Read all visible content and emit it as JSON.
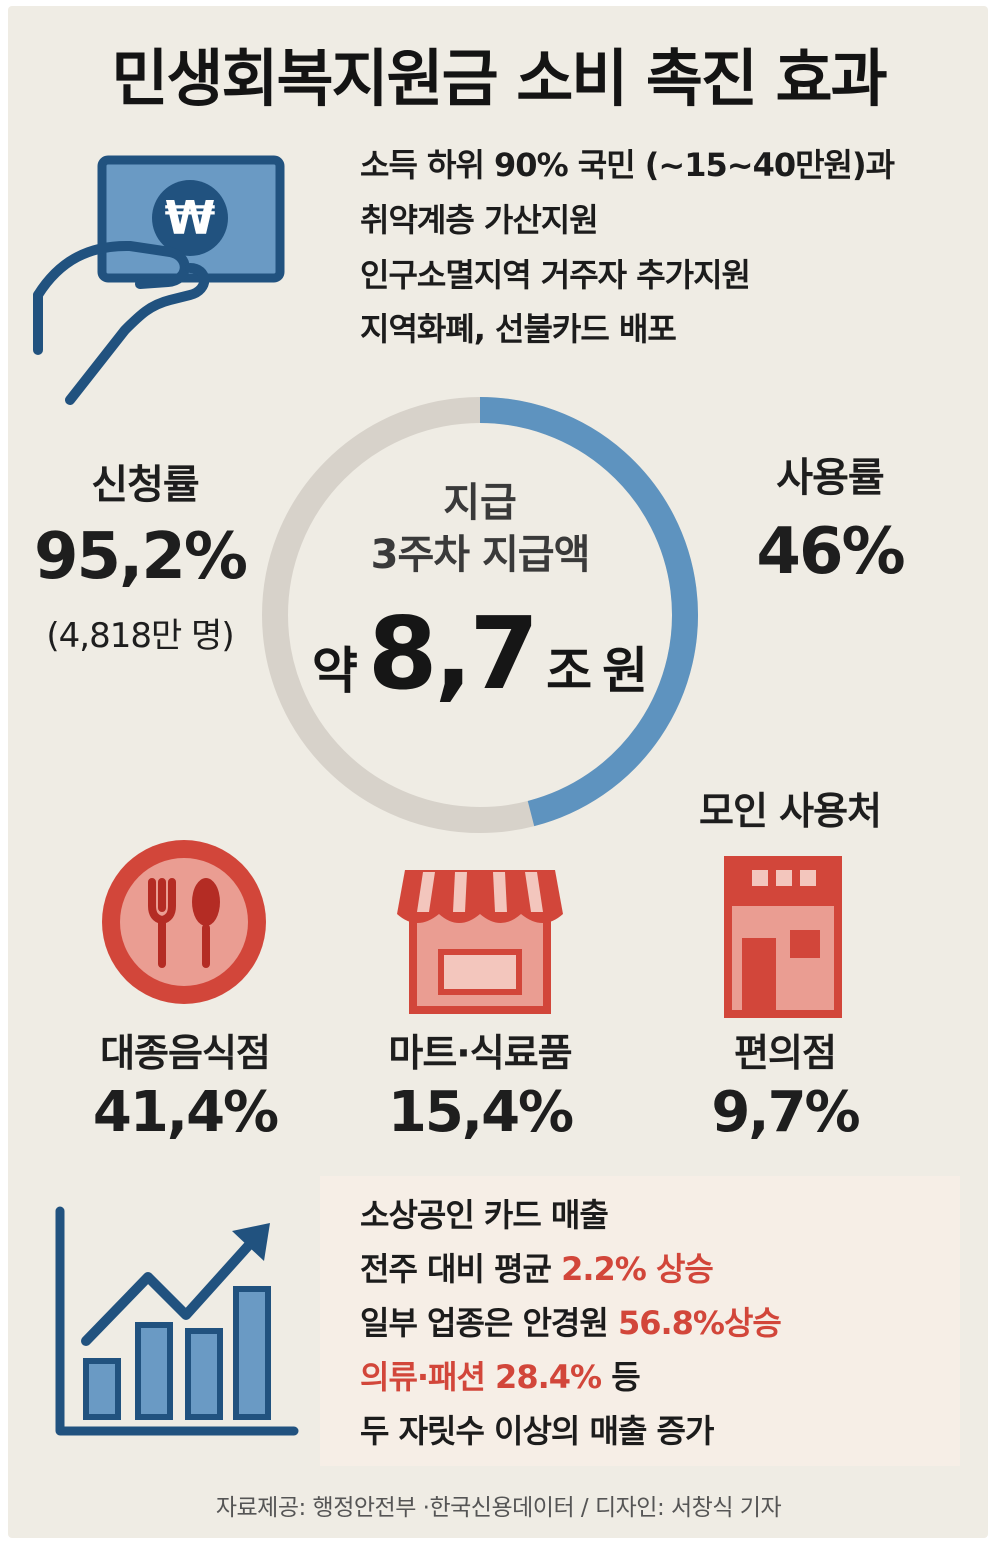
{
  "colors": {
    "background": "#efece4",
    "blue_dark": "#21527f",
    "blue_light": "#5e93bf",
    "red": "#d2463a",
    "red_light": "#ea9d92",
    "ring_gray": "#d7d2ca",
    "text": "#1c1c1c"
  },
  "title": "민생회복지원금 소비 촉진 효과",
  "info": {
    "line1": "소득 하위 90% 국민 (~15~40만원)과",
    "line2": "취약계층 가산지원",
    "line3": "인구소멸지역 거주자 추가지원",
    "line4": "지역화폐, 선불카드 배포"
  },
  "card_icon": {
    "symbol": "₩",
    "icon": "hand-card-won-icon"
  },
  "application": {
    "label": "신청률",
    "value": "95,2%",
    "note": "(4,818만 명)"
  },
  "usage": {
    "label": "사용률",
    "value": "46%",
    "fraction": 0.46
  },
  "center": {
    "line1": "지급",
    "line2": "3주차 지급액",
    "prefix": "약",
    "amount": "8,7",
    "unit1": "조",
    "unit2": "원"
  },
  "places": {
    "heading": "모인 사용처",
    "items": [
      {
        "icon": "restaurant-fork-spoon-icon",
        "label": "대종음식점",
        "value": "41,4%"
      },
      {
        "icon": "storefront-icon",
        "label": "마트·식료품",
        "value": "15,4%"
      },
      {
        "icon": "convenience-store-icon",
        "label": "편의점",
        "value": "9,7%"
      }
    ]
  },
  "sales": {
    "line1": "소상공인 카드 매출",
    "line2_text": "전주 대비 평균 ",
    "line2_highlight": "2.2% 상승",
    "line3_text": "일부 업종은 안경원 ",
    "line3_highlight": "56.8%상승",
    "line4_highlight": "의류·패션 28.4%",
    "line4_text": " 등",
    "line5": "두 자릿수 이상의 매출 증가"
  },
  "footer": "자료제공: 행정안전부 ·한국신용데이터 / 디자인: 서창식 기자"
}
